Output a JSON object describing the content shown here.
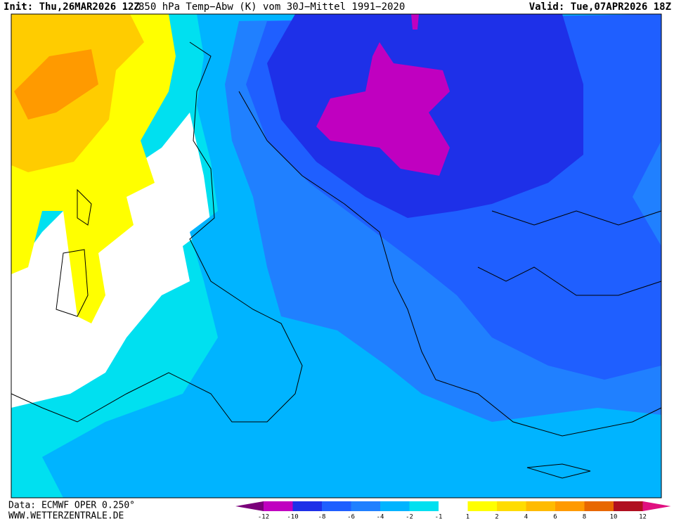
{
  "header": {
    "init": "Init: Thu,26MAR2026 12Z",
    "title": "850 hPa Temp−Abw (K) vom 30J−Mittel 1991−2020",
    "valid": "Valid: Tue,07APR2026 18Z"
  },
  "footer": {
    "data": "Data: ECMWF OPER 0.250°",
    "site": "WWW.WETTERZENTRALE.DE"
  },
  "legend": {
    "ticks": [
      -12,
      -10,
      -8,
      -6,
      -4,
      -2,
      -1,
      1,
      2,
      4,
      6,
      8,
      10,
      12
    ],
    "colors": [
      "#7a007a",
      "#c000c0",
      "#1e30e8",
      "#1f5fff",
      "#2080ff",
      "#00b4ff",
      "#00e0f0",
      "#ffffff",
      "#ffff00",
      "#ffdc00",
      "#ffbb00",
      "#ff9a00",
      "#e86800",
      "#b01020",
      "#e01080"
    ]
  }
}
